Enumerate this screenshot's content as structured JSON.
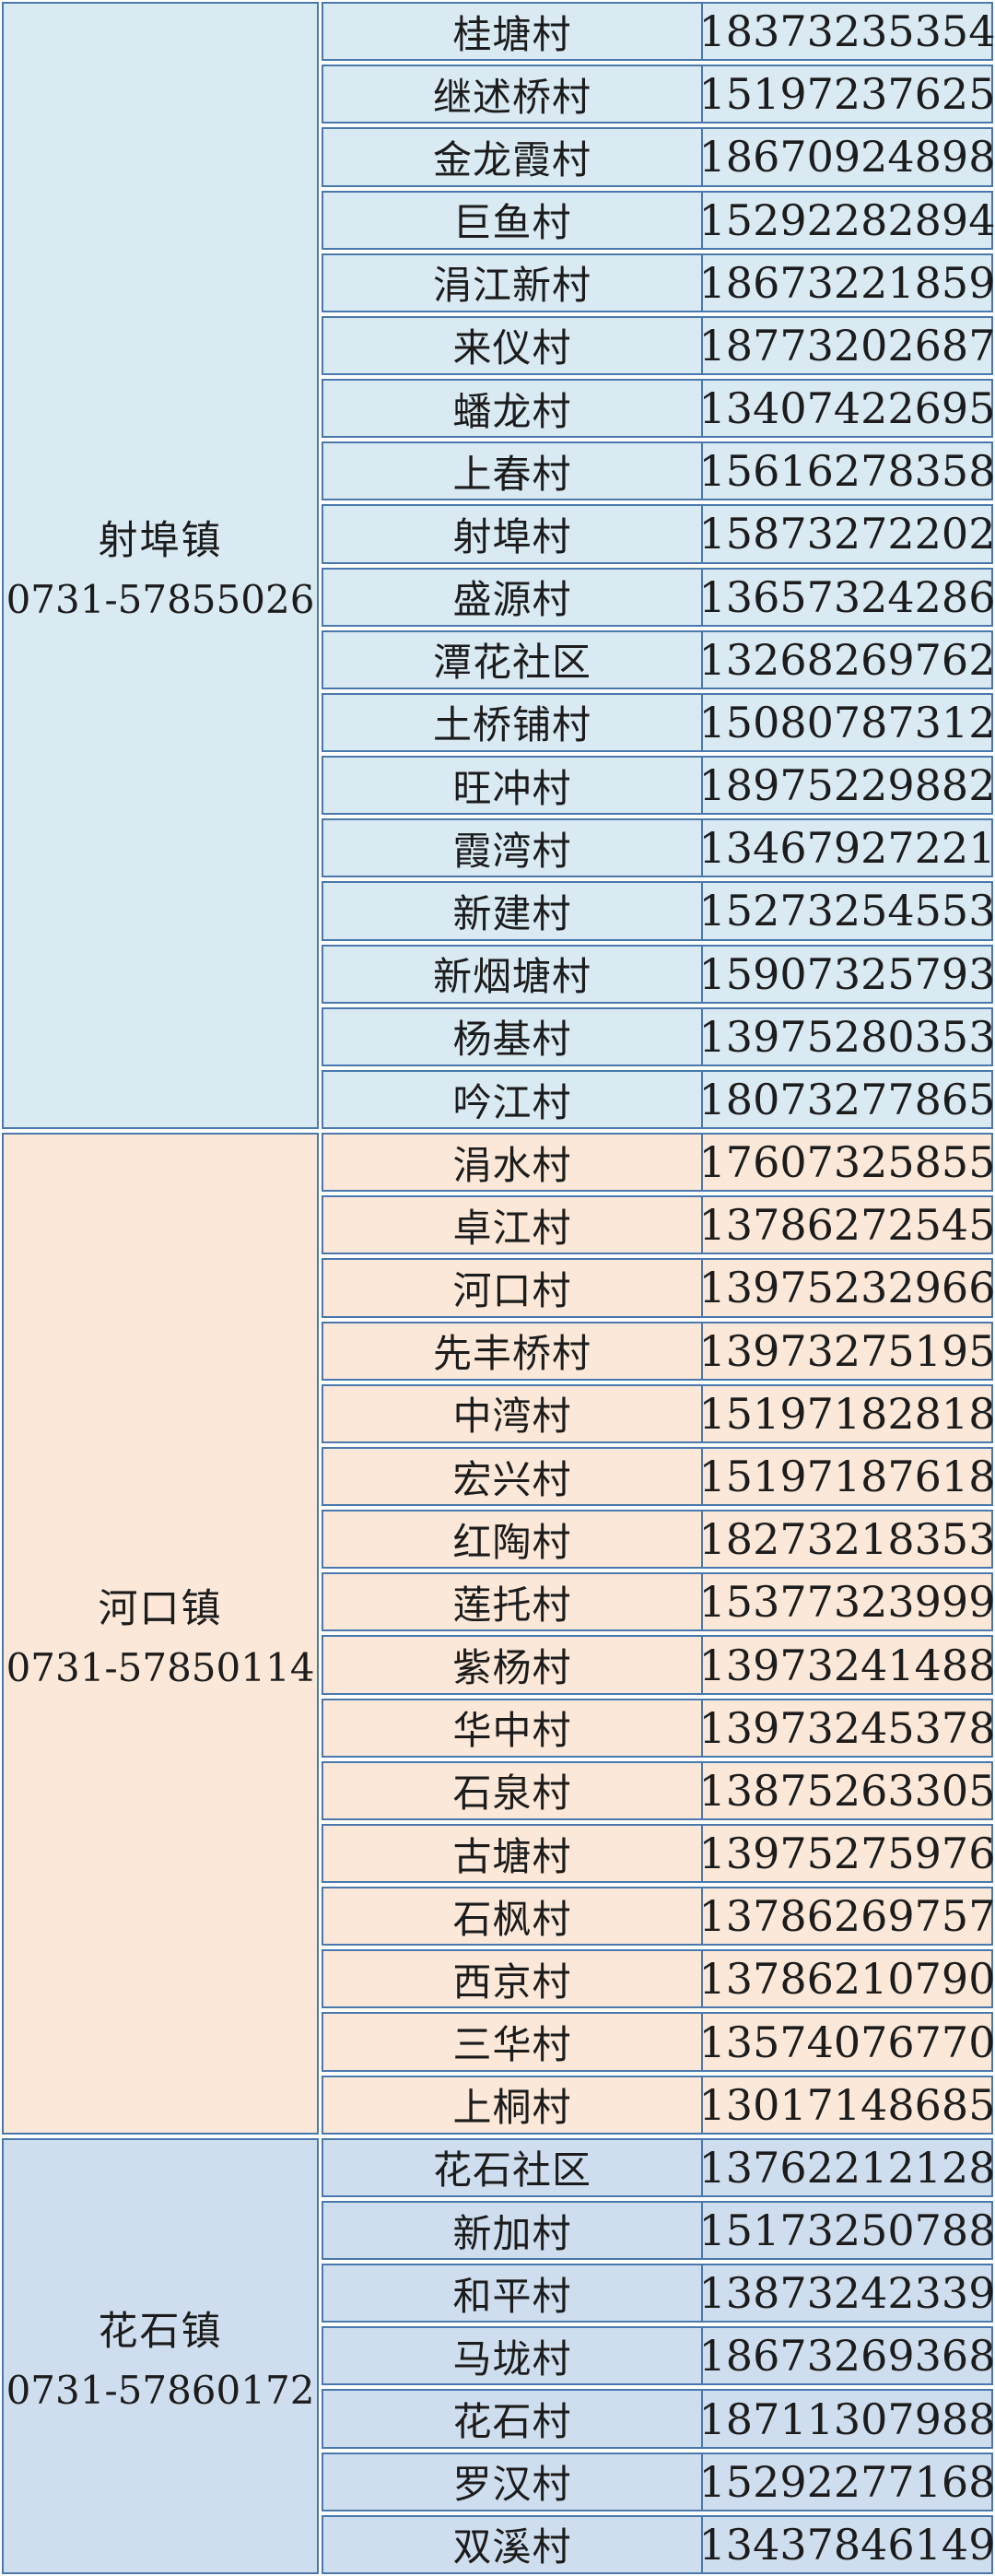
{
  "page": {
    "background": "#ffffff"
  },
  "colors": {
    "border": "#4a78ad",
    "text": "#1c1c1c",
    "section_blue_bg": "#d9eaf2",
    "section_peach_bg": "#fbe8d8",
    "section_periwinkle_bg": "#cfdeee"
  },
  "table": {
    "sections": [
      {
        "town": "射埠镇",
        "town_phone": "0731-57855026",
        "theme": "blue",
        "rows": [
          {
            "village": "桂塘村",
            "phone": "18373235354"
          },
          {
            "village": "继述桥村",
            "phone": "15197237625"
          },
          {
            "village": "金龙霞村",
            "phone": "18670924898"
          },
          {
            "village": "巨鱼村",
            "phone": "15292282894"
          },
          {
            "village": "涓江新村",
            "phone": "18673221859"
          },
          {
            "village": "来仪村",
            "phone": "18773202687"
          },
          {
            "village": "蟠龙村",
            "phone": "13407422695"
          },
          {
            "village": "上春村",
            "phone": "15616278358"
          },
          {
            "village": "射埠村",
            "phone": "15873272202"
          },
          {
            "village": "盛源村",
            "phone": "13657324286"
          },
          {
            "village": "潭花社区",
            "phone": "13268269762"
          },
          {
            "village": "土桥铺村",
            "phone": "15080787312"
          },
          {
            "village": "旺冲村",
            "phone": "18975229882"
          },
          {
            "village": "霞湾村",
            "phone": "13467927221"
          },
          {
            "village": "新建村",
            "phone": "15273254553"
          },
          {
            "village": "新烟塘村",
            "phone": "15907325793"
          },
          {
            "village": "杨基村",
            "phone": "13975280353"
          },
          {
            "village": "吟江村",
            "phone": "18073277865"
          }
        ]
      },
      {
        "town": "河口镇",
        "town_phone": "0731-57850114",
        "theme": "peach",
        "rows": [
          {
            "village": "涓水村",
            "phone": "17607325855"
          },
          {
            "village": "卓江村",
            "phone": "13786272545"
          },
          {
            "village": "河口村",
            "phone": "13975232966"
          },
          {
            "village": "先丰桥村",
            "phone": "13973275195"
          },
          {
            "village": "中湾村",
            "phone": "15197182818"
          },
          {
            "village": "宏兴村",
            "phone": "15197187618"
          },
          {
            "village": "红陶村",
            "phone": "18273218353"
          },
          {
            "village": "莲托村",
            "phone": "15377323999"
          },
          {
            "village": "紫杨村",
            "phone": "13973241488"
          },
          {
            "village": "华中村",
            "phone": "13973245378"
          },
          {
            "village": "石泉村",
            "phone": "13875263305"
          },
          {
            "village": "古塘村",
            "phone": "13975275976"
          },
          {
            "village": "石枫村",
            "phone": "13786269757"
          },
          {
            "village": "西京村",
            "phone": "13786210790"
          },
          {
            "village": "三华村",
            "phone": "13574076770"
          },
          {
            "village": "上桐村",
            "phone": "13017148685"
          }
        ]
      },
      {
        "town": "花石镇",
        "town_phone": "0731-57860172",
        "theme": "periwinkle",
        "rows": [
          {
            "village": "花石社区",
            "phone": "13762212128"
          },
          {
            "village": "新加村",
            "phone": "15173250788"
          },
          {
            "village": "和平村",
            "phone": "13873242339"
          },
          {
            "village": "马垅村",
            "phone": "18673269368"
          },
          {
            "village": "花石村",
            "phone": "18711307988"
          },
          {
            "village": "罗汉村",
            "phone": "15292277168"
          },
          {
            "village": "双溪村",
            "phone": "13437846149"
          }
        ]
      }
    ]
  }
}
